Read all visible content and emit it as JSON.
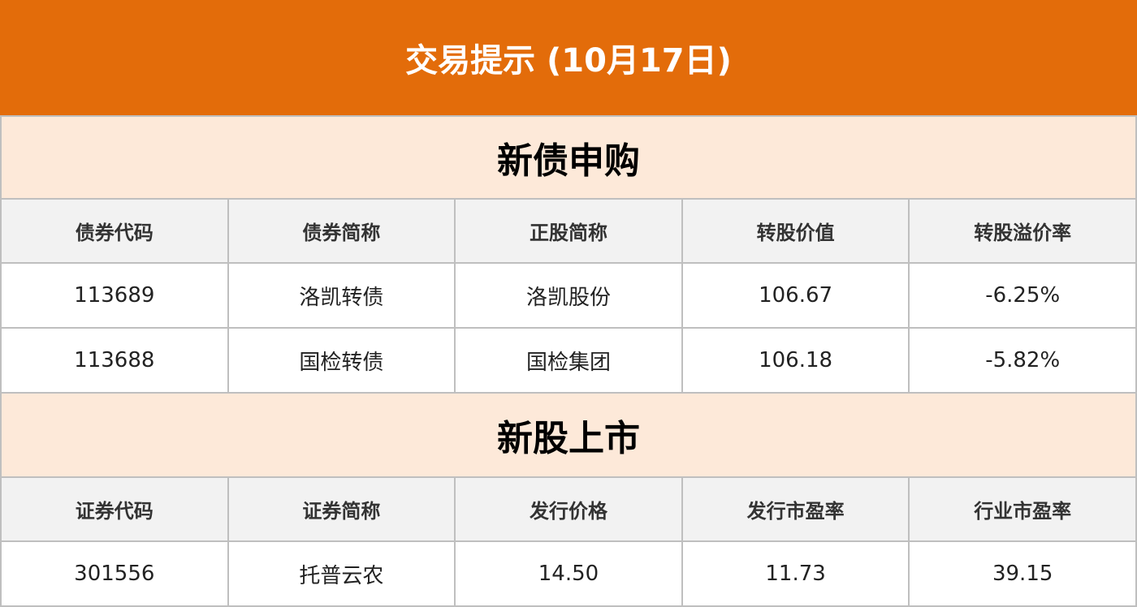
{
  "title": "交易提示 (10月17日)",
  "colors": {
    "header": "#E36C0A",
    "section": "#FDE9D9",
    "table_header": "#F2F2F2",
    "border": "#BFBFBF"
  },
  "bonds": {
    "title": "新债申购",
    "headers": [
      "债券代码",
      "债券简称",
      "正股简称",
      "转股价值",
      "转股溢价率"
    ],
    "rows": [
      [
        "113689",
        "洛凯转债",
        "洛凯股份",
        "106.67",
        "-6.25%"
      ],
      [
        "113688",
        "国检转债",
        "国检集团",
        "106.18",
        "-5.82%"
      ]
    ]
  },
  "stocks": {
    "title": "新股上市",
    "headers": [
      "证券代码",
      "证券简称",
      "发行价格",
      "发行市盈率",
      "行业市盈率"
    ],
    "rows": [
      [
        "301556",
        "托普云农",
        "14.50",
        "11.73",
        "39.15"
      ]
    ]
  }
}
